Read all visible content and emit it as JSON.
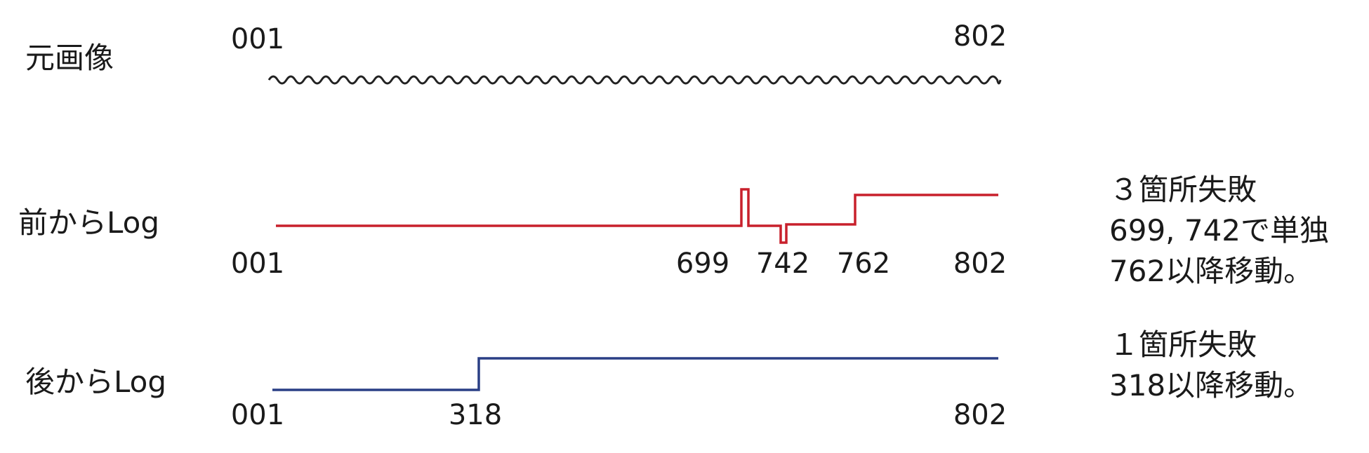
{
  "rows": [
    {
      "label": "元画像",
      "ticks": [
        "001",
        "802"
      ]
    },
    {
      "label": "前からLog",
      "ticks": [
        "001",
        "699",
        "742",
        "762",
        "802"
      ],
      "note": [
        "３箇所失敗",
        "699, 742で単独",
        "762以降移動。"
      ]
    },
    {
      "label": "後からLog",
      "ticks": [
        "001",
        "318",
        "802"
      ],
      "note": [
        "１箇所失敗",
        "318以降移動。"
      ]
    }
  ],
  "colors": {
    "original_wave": "#222222",
    "forward_log": "#c8202c",
    "backward_log": "#2a3f85"
  }
}
